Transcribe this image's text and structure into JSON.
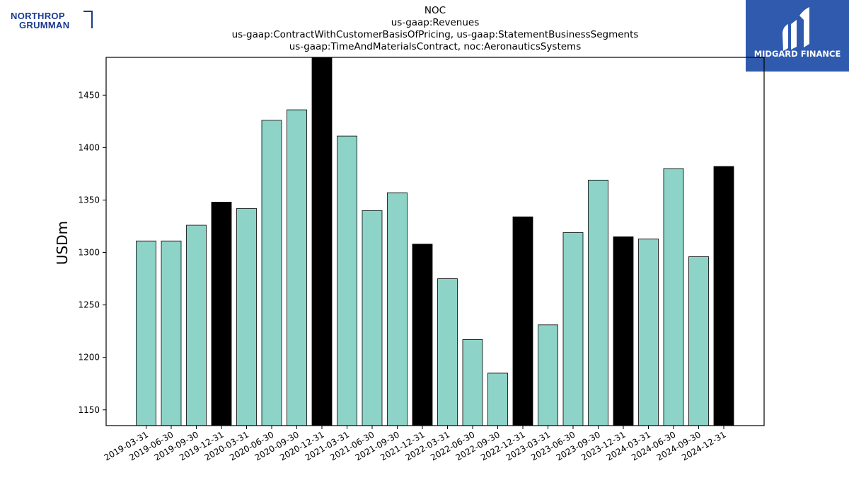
{
  "logos": {
    "left_brand_line1": "NORTHROP",
    "left_brand_line2": "GRUMMAN",
    "left_brand_color": "#1b3a8f",
    "right_brand": "MIDGARD FINANCE",
    "right_brand_bg": "#2f5aae"
  },
  "chart_data": {
    "type": "bar",
    "title_lines": [
      "NOC",
      "us-gaap:Revenues",
      "us-gaap:ContractWithCustomerBasisOfPricing, us-gaap:StatementBusinessSegments",
      "us-gaap:TimeAndMaterialsContract, noc:AeronauticsSystems"
    ],
    "xlabel": "",
    "ylabel": "USDm",
    "ylim": [
      1135,
      1486
    ],
    "yticks": [
      1150,
      1200,
      1250,
      1300,
      1350,
      1400,
      1450
    ],
    "grid": false,
    "colors": {
      "quarter": "#8dd3c7",
      "year_end": "#000000",
      "edge": "#000000"
    },
    "categories": [
      "2019-03-31",
      "2019-06-30",
      "2019-09-30",
      "2019-12-31",
      "2020-03-31",
      "2020-06-30",
      "2020-09-30",
      "2020-12-31",
      "2021-03-31",
      "2021-06-30",
      "2021-09-30",
      "2021-12-31",
      "2022-03-31",
      "2022-06-30",
      "2022-09-30",
      "2022-12-31",
      "2023-03-31",
      "2023-06-30",
      "2023-09-30",
      "2023-12-31",
      "2024-03-31",
      "2024-06-30",
      "2024-09-30",
      "2024-12-31"
    ],
    "values": [
      1311,
      1311,
      1326,
      1348,
      1342,
      1426,
      1436,
      1486,
      1411,
      1340,
      1357,
      1308,
      1275,
      1217,
      1185,
      1334,
      1231,
      1319,
      1369,
      1315,
      1313,
      1380,
      1296,
      1382
    ],
    "year_end": [
      false,
      false,
      false,
      true,
      false,
      false,
      false,
      true,
      false,
      false,
      false,
      true,
      false,
      false,
      false,
      true,
      false,
      false,
      false,
      true,
      false,
      false,
      false,
      true
    ]
  }
}
